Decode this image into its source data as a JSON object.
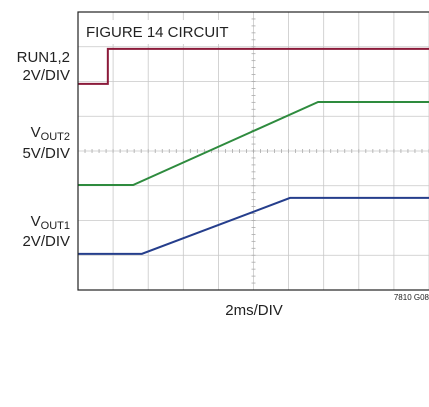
{
  "chart_data": {
    "type": "line",
    "annotation": "FIGURE 14 CIRCUIT",
    "x_label": "2ms/DIV",
    "note": "7810 G08",
    "xlim": [
      0,
      10
    ],
    "ylim": [
      0,
      8
    ],
    "xticks": [
      0,
      1,
      2,
      3,
      4,
      5,
      6,
      7,
      8,
      9,
      10
    ],
    "yticks": [
      0,
      1,
      2,
      3,
      4,
      5,
      6,
      7,
      8
    ],
    "grid": true,
    "series": [
      {
        "name": "RUN1,2",
        "scale": "2V/DIV",
        "color": "#8b1a3a",
        "x": [
          0,
          0.85,
          0.85,
          10
        ],
        "values": [
          5.93,
          5.93,
          6.94,
          6.94
        ]
      },
      {
        "name": "VOUT2",
        "scale": "5V/DIV",
        "color": "#2e8b3e",
        "x": [
          0,
          1.57,
          6.84,
          10
        ],
        "values": [
          3.02,
          3.02,
          5.41,
          5.41
        ]
      },
      {
        "name": "VOUT1",
        "scale": "2V/DIV",
        "color": "#253e8c",
        "x": [
          0,
          1.82,
          6.04,
          10
        ],
        "values": [
          1.04,
          1.04,
          2.65,
          2.65
        ]
      }
    ]
  }
}
